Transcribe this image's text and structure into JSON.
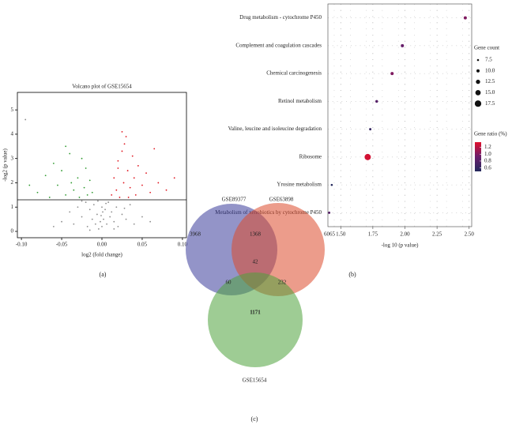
{
  "chart_data": [
    {
      "type": "scatter",
      "title": "Volcano plot of GSE15654",
      "panel": "(a)",
      "x_label": "log2 (fold change)",
      "y_label": "-log2 (p value)",
      "xlim": [
        -0.105,
        0.105
      ],
      "ylim": [
        -0.26,
        5.72
      ],
      "xticks": [
        {
          "value": -0.1,
          "label": "-0.10"
        },
        {
          "value": -0.05,
          "label": "-0.05"
        },
        {
          "value": 0,
          "label": "0.00"
        },
        {
          "value": 0.05,
          "label": "0.05"
        },
        {
          "value": 0.1,
          "label": "0.10"
        }
      ],
      "yticks": [
        0,
        1,
        2,
        3,
        4,
        5
      ],
      "hline": 1.3,
      "series": [
        {
          "color": "#8c8c8c",
          "x": [
            -0.05,
            -0.04,
            -0.035,
            -0.03,
            -0.025,
            -0.02,
            -0.018,
            -0.015,
            -0.012,
            -0.01,
            -0.008,
            -0.006,
            -0.004,
            -0.002,
            0,
            0.002,
            0.004,
            0.006,
            0.008,
            0.01,
            0.012,
            0.015,
            0.018,
            0.02,
            0.025,
            0.03,
            0.035,
            0.04,
            0.05,
            -0.06,
            0.06,
            -0.005,
            0.005,
            -0.015,
            0.015,
            -0.025,
            0.028,
            0.001,
            -0.001,
            0.0,
            -0.095
          ],
          "y": [
            0.4,
            0.8,
            0.3,
            1.0,
            0.6,
            1.2,
            0.2,
            0.9,
            0.5,
            1.1,
            0.3,
            0.7,
            0.1,
            0.4,
            0.2,
            0.5,
            0.9,
            0.3,
            1.2,
            0.6,
            0.8,
            0.4,
            1.0,
            0.2,
            0.7,
            0.5,
            1.1,
            0.3,
            0.6,
            0.2,
            0.4,
            1.25,
            1.15,
            0.05,
            0.1,
            1.25,
            0.95,
            0.8,
            0.65,
            1.0,
            4.6
          ]
        },
        {
          "color": "#2e9a2e",
          "x": [
            -0.08,
            -0.07,
            -0.065,
            -0.06,
            -0.055,
            -0.05,
            -0.045,
            -0.04,
            -0.038,
            -0.035,
            -0.03,
            -0.028,
            -0.025,
            -0.022,
            -0.02,
            -0.018,
            -0.015,
            -0.012,
            -0.09,
            -0.045
          ],
          "y": [
            1.6,
            2.3,
            1.4,
            2.8,
            1.9,
            2.5,
            1.5,
            3.2,
            2.0,
            1.7,
            2.2,
            1.4,
            3.0,
            1.8,
            2.6,
            1.5,
            2.1,
            1.6,
            1.9,
            3.5
          ]
        },
        {
          "color": "#e0141e",
          "x": [
            0.012,
            0.015,
            0.018,
            0.02,
            0.022,
            0.025,
            0.027,
            0.03,
            0.032,
            0.035,
            0.038,
            0.04,
            0.042,
            0.045,
            0.05,
            0.055,
            0.06,
            0.065,
            0.07,
            0.08,
            0.025,
            0.028,
            0.02,
            0.033,
            0.09
          ],
          "y": [
            1.5,
            2.2,
            1.7,
            2.9,
            1.4,
            3.3,
            2.0,
            3.9,
            2.5,
            1.8,
            3.1,
            2.2,
            1.5,
            2.7,
            1.9,
            2.4,
            1.6,
            3.4,
            2.0,
            1.7,
            4.1,
            3.6,
            2.6,
            1.4,
            2.2
          ]
        }
      ]
    },
    {
      "type": "dot",
      "panel": "(b)",
      "x_label": "-log 10 (p value)",
      "categories": [
        "Drug metabolism - cytochrome P450",
        "Complement and coagulation cascades",
        "Chemical carcinogenesis",
        "Retinol metabolism",
        "Valine, leucine and isoleucine degradation",
        "Ribosome",
        "Yrosine metabolism",
        "Metabolism of xenobiotics by cytochrome P450"
      ],
      "values": [
        2.47,
        1.98,
        1.9,
        1.78,
        1.73,
        1.71,
        1.43,
        1.41
      ],
      "sizes": [
        10,
        10,
        10,
        9,
        8,
        17,
        7.5,
        8
      ],
      "ratios": [
        1.0,
        0.9,
        1.0,
        0.8,
        0.6,
        1.3,
        0.5,
        0.8
      ],
      "xlim": [
        1.4,
        2.52
      ],
      "xticks": [
        {
          "value": 1.5,
          "label": "1.50"
        },
        {
          "value": 1.75,
          "label": "1.75"
        },
        {
          "value": 2,
          "label": "2.00"
        },
        {
          "value": 2.25,
          "label": "2.25"
        },
        {
          "value": 2.5,
          "label": "2.50"
        }
      ],
      "grid": true,
      "size_legend": {
        "title": "Gene count",
        "values": [
          {
            "value": 7.5,
            "label": "7.5"
          },
          {
            "value": 10,
            "label": "10.0"
          },
          {
            "value": 12.5,
            "label": "12.5"
          },
          {
            "value": 15,
            "label": "15.0"
          },
          {
            "value": 17.5,
            "label": "17.5"
          }
        ]
      },
      "color_legend": {
        "title": "Gene ratio (%)",
        "range": [
          0.5,
          1.35
        ],
        "colors": [
          "#23285c",
          "#6a1d6b",
          "#e0102d"
        ],
        "ticks": [
          1.2,
          {
            "value": 1,
            "label": "1.0"
          },
          0.8,
          0.6
        ]
      }
    },
    {
      "type": "venn",
      "panel": "(c)",
      "sets": [
        {
          "name": "GSE89377",
          "color": "#3b3c9a"
        },
        {
          "name": "GSE63898",
          "color": "#dd4a2c"
        },
        {
          "name": "GSE15654",
          "color": "#4fa33c"
        }
      ],
      "regions": [
        3968,
        1368,
        6065,
        42,
        60,
        232,
        1171
      ]
    }
  ]
}
